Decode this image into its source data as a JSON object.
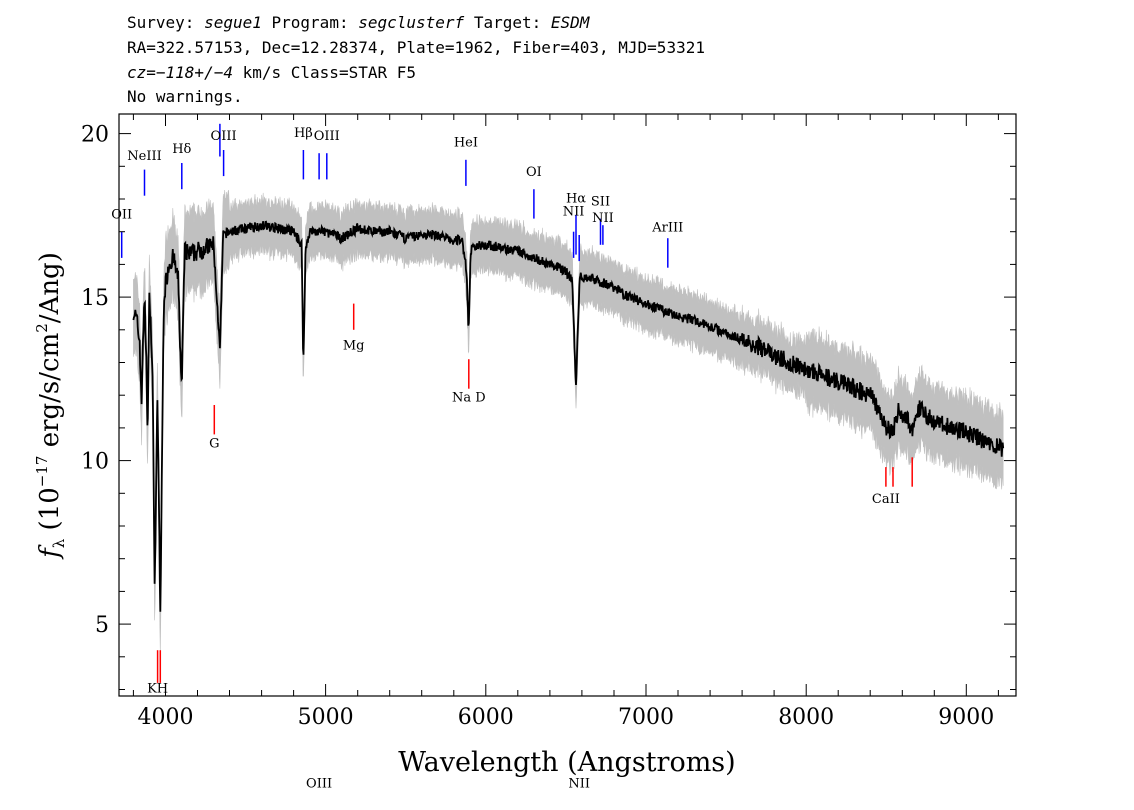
{
  "header": {
    "line1": {
      "survey_label": "Survey:",
      "survey": "segue1",
      "program_label": "Program:",
      "program": "segclusterf",
      "target_label": "Target:",
      "target": "ESDM"
    },
    "line2": "RA=322.57153, Dec=12.28374, Plate=1962, Fiber=403, MJD=53321",
    "line3": {
      "cz": "cz=−118+/−4",
      "rest": "km/s Class=STAR F5"
    },
    "line4": "No warnings."
  },
  "chart_data": {
    "type": "line",
    "xlabel": "Wavelength (Angstroms)",
    "ylabel": "f_λ (10^-17 erg/s/cm^2/Ang)",
    "xlim": [
      3710,
      9310
    ],
    "ylim": [
      2.8,
      20.6
    ],
    "xticks": [
      4000,
      5000,
      6000,
      7000,
      8000,
      9000
    ],
    "yticks": [
      5,
      10,
      15,
      20
    ],
    "grid": false,
    "series": [
      {
        "color": "#000000",
        "x": [
          3800,
          3820,
          3840,
          3850,
          3860,
          3870,
          3880,
          3889,
          3900,
          3920,
          3933,
          3950,
          3968,
          3990,
          4020,
          4050,
          4080,
          4101,
          4120,
          4150,
          4200,
          4250,
          4300,
          4340,
          4360,
          4400,
          4500,
          4600,
          4700,
          4800,
          4850,
          4861,
          4875,
          4900,
          5000,
          5100,
          5200,
          5300,
          5400,
          5500,
          5600,
          5700,
          5800,
          5850,
          5880,
          5893,
          5905,
          5950,
          6000,
          6100,
          6200,
          6300,
          6400,
          6500,
          6540,
          6563,
          6585,
          6650,
          6700,
          6800,
          6900,
          7000,
          7100,
          7200,
          7300,
          7400,
          7500,
          7600,
          7700,
          7800,
          7900,
          8000,
          8100,
          8200,
          8300,
          8400,
          8450,
          8498,
          8542,
          8580,
          8662,
          8700,
          8800,
          8900,
          9000,
          9100,
          9200,
          9230
        ],
        "y": [
          14.6,
          14.3,
          13.6,
          11.6,
          13.8,
          14.9,
          13.2,
          10.8,
          15.3,
          12.5,
          6.0,
          12.0,
          5.3,
          15.0,
          16.0,
          16.2,
          15.5,
          12.1,
          16.4,
          16.3,
          16.4,
          16.5,
          16.6,
          13.4,
          16.9,
          17.0,
          17.1,
          17.2,
          17.1,
          17.0,
          16.6,
          12.9,
          16.5,
          17.0,
          17.0,
          16.8,
          17.1,
          17.0,
          17.0,
          16.8,
          16.9,
          16.9,
          16.7,
          16.8,
          15.8,
          13.9,
          16.4,
          16.6,
          16.6,
          16.5,
          16.4,
          16.2,
          16.0,
          15.8,
          15.5,
          12.2,
          15.6,
          15.6,
          15.5,
          15.3,
          15.0,
          14.8,
          14.6,
          14.4,
          14.3,
          14.1,
          13.9,
          13.7,
          13.5,
          13.2,
          13.0,
          12.8,
          12.6,
          12.4,
          12.2,
          12.0,
          11.6,
          11.0,
          10.9,
          11.6,
          11.0,
          11.6,
          11.2,
          11.0,
          10.9,
          10.6,
          10.4,
          10.3
        ]
      }
    ],
    "emission_lines": [
      {
        "label": "OII",
        "wave": 3727,
        "y0": 16.2,
        "y1": 17.0,
        "text_y": 17.4
      },
      {
        "label": "NeIII",
        "wave": 3869,
        "y0": 18.1,
        "y1": 18.9,
        "text_y": 19.2
      },
      {
        "label": "Hδ",
        "wave": 4102,
        "y0": 18.3,
        "y1": 19.1,
        "text_y": 19.4
      },
      {
        "label": "",
        "wave": 4340,
        "y0": 19.3,
        "y1": 20.3,
        "text_y": 0
      },
      {
        "label": "OIII",
        "wave": 4363,
        "y0": 18.7,
        "y1": 19.5,
        "text_y": 19.8
      },
      {
        "label": "Hβ",
        "wave": 4861,
        "y0": 18.6,
        "y1": 19.5,
        "text_y": 19.9
      },
      {
        "label": "OIII",
        "wave": 4959,
        "y0": 18.6,
        "y1": 19.4,
        "text_y": 0
      },
      {
        "label": "OIII",
        "wave": 5007,
        "y0": 18.6,
        "y1": 19.4,
        "text_y": 19.8
      },
      {
        "label": "HeI",
        "wave": 5876,
        "y0": 18.4,
        "y1": 19.2,
        "text_y": 19.6
      },
      {
        "label": "OI",
        "wave": 6300,
        "y0": 17.4,
        "y1": 18.3,
        "text_y": 18.7
      },
      {
        "label": "NII",
        "wave": 6548,
        "y0": 16.2,
        "y1": 17.0,
        "text_y": 17.5
      },
      {
        "label": "Hα",
        "wave": 6563,
        "y0": 16.3,
        "y1": 17.5,
        "text_y": 17.9
      },
      {
        "label": "NII",
        "wave": 6583,
        "y0": 16.1,
        "y1": 16.9,
        "text_y": 0
      },
      {
        "label": "SII",
        "wave": 6716,
        "y0": 16.6,
        "y1": 17.4,
        "text_y": 17.8
      },
      {
        "label": "NII",
        "wave": 6731,
        "y0": 16.6,
        "y1": 17.2,
        "text_y": 17.3
      },
      {
        "label": "ArIII",
        "wave": 7136,
        "y0": 15.9,
        "y1": 16.8,
        "text_y": 17.0
      }
    ],
    "absorption_lines": [
      {
        "label": "KH",
        "wave": 3951,
        "y0": 3.2,
        "y1": 4.2,
        "text_y": 2.9
      },
      {
        "label": "",
        "wave": 3968,
        "y0": 3.2,
        "y1": 4.2,
        "text_y": 0
      },
      {
        "label": "G",
        "wave": 4305,
        "y0": 10.8,
        "y1": 11.7,
        "text_y": 10.4
      },
      {
        "label": "Mg",
        "wave": 5175,
        "y0": 14.0,
        "y1": 14.8,
        "text_y": 13.4
      },
      {
        "label": "Na D",
        "wave": 5894,
        "y0": 12.2,
        "y1": 13.1,
        "text_y": 11.8
      },
      {
        "label": "CaII",
        "wave": 8498,
        "y0": 9.2,
        "y1": 9.8,
        "text_y": 8.7
      },
      {
        "label": "",
        "wave": 8542,
        "y0": 9.2,
        "y1": 9.8,
        "text_y": 0
      },
      {
        "label": "",
        "wave": 8662,
        "y0": 9.2,
        "y1": 10.1,
        "text_y": 0
      }
    ],
    "colors": {
      "spectrum": "#000000",
      "noise_band": "#c0c0c0",
      "emission": "#0000ff",
      "absorption": "#ff0000"
    }
  }
}
